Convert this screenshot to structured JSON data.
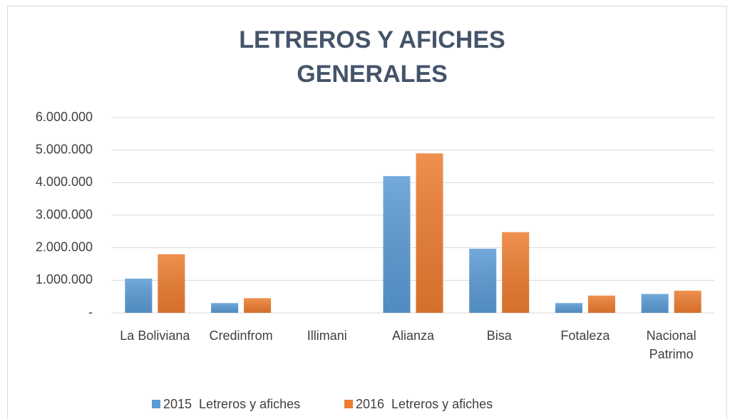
{
  "chart_data": {
    "type": "bar",
    "title": [
      "LETREROS Y AFICHES",
      "GENERALES"
    ],
    "categories": [
      "La Boliviana",
      "Credinfrom",
      "Illimani",
      "Alianza",
      "Bisa",
      "Fotaleza",
      "Nacional Patrimo"
    ],
    "series": [
      {
        "name": "2015  Letreros y afiches",
        "color": "#5b9bd5",
        "values": [
          1050000,
          300000,
          0,
          4200000,
          1970000,
          300000,
          580000
        ]
      },
      {
        "name": "2016  Letreros y afiches",
        "color": "#ed7d31",
        "values": [
          1800000,
          450000,
          0,
          4900000,
          2480000,
          530000,
          680000
        ]
      }
    ],
    "ylim": [
      0,
      6000000
    ],
    "yticks": [
      {
        "value": 0,
        "label": "-"
      },
      {
        "value": 1000000,
        "label": "1.000.000"
      },
      {
        "value": 2000000,
        "label": "2.000.000"
      },
      {
        "value": 3000000,
        "label": "3.000.000"
      },
      {
        "value": 4000000,
        "label": "4.000.000"
      },
      {
        "value": 5000000,
        "label": "5.000.000"
      },
      {
        "value": 6000000,
        "label": "6.000.000"
      }
    ],
    "grid": true,
    "legend": "bottom"
  }
}
